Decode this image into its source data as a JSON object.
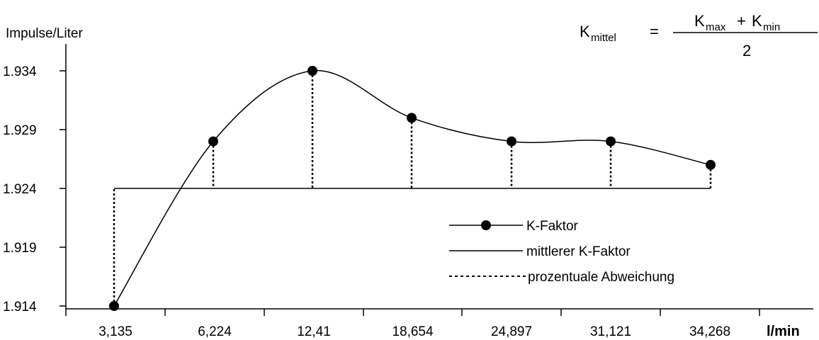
{
  "chart_data": {
    "type": "line",
    "ylabel": "Impulse/Liter",
    "xunit": "l/min",
    "categories": [
      "3,135",
      "6,224",
      "12,41",
      "18,654",
      "24,897",
      "31,121",
      "34,268"
    ],
    "yticks": [
      "1.934",
      "1.929",
      "1.924",
      "1.919",
      "1.914"
    ],
    "ylim": [
      1914,
      1934
    ],
    "series": [
      {
        "name": "K-Faktor",
        "values": [
          1914,
          1928,
          1934,
          1930,
          1928,
          1928,
          1926
        ]
      },
      {
        "name": "mittlerer K-Faktor",
        "values": [
          1924,
          1924,
          1924,
          1924,
          1924,
          1924,
          1924
        ]
      }
    ],
    "deviation_label": "prozentuale Abweichung",
    "formula": {
      "lhs_base": "K",
      "lhs_sub": "mittel",
      "equals": "=",
      "num_a_base": "K",
      "num_a_sub": "max",
      "plus": "+",
      "num_b_base": "K",
      "num_b_sub": "min",
      "denominator": "2"
    },
    "grid": false,
    "legend_position": "center-right",
    "colors": {
      "line": "#000000",
      "background": "#ffffff"
    }
  }
}
